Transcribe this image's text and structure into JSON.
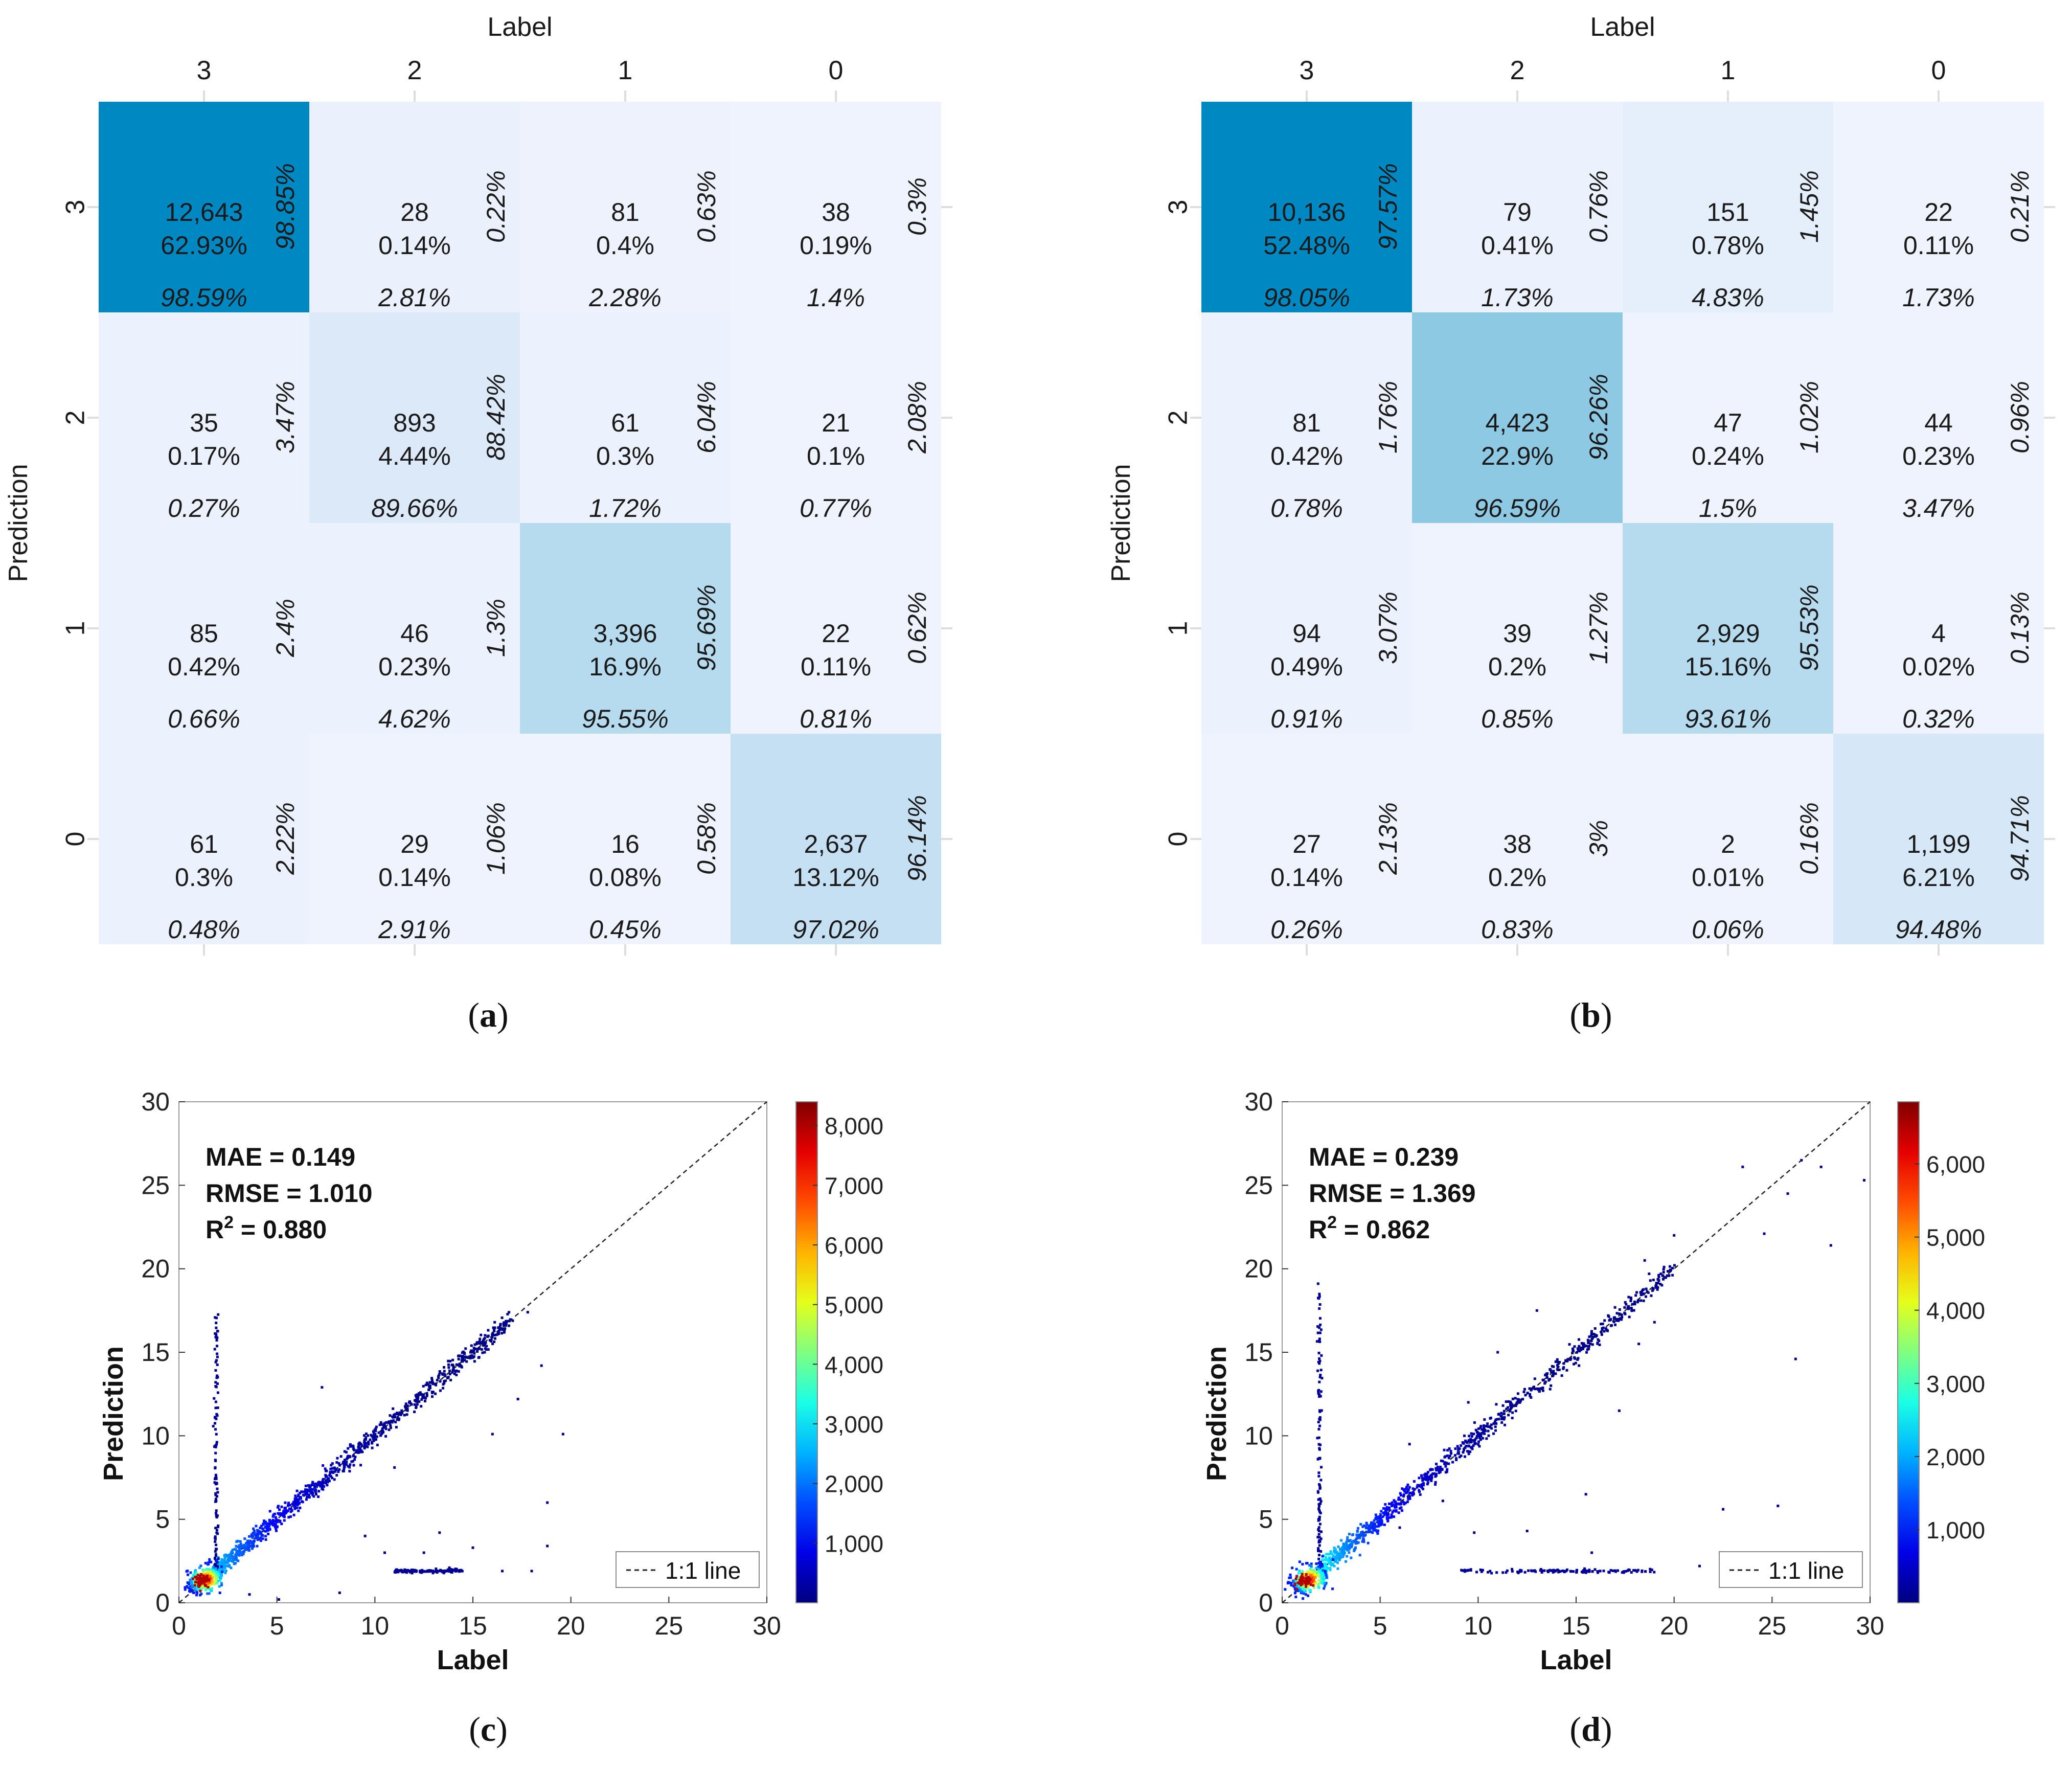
{
  "chart_data": [
    {
      "id": "a",
      "type": "heatmap",
      "caption_letter": "a",
      "xlabel": "Label",
      "ylabel": "Prediction",
      "x_categories": [
        "3",
        "2",
        "1",
        "0"
      ],
      "y_categories": [
        "3",
        "2",
        "1",
        "0"
      ],
      "cells": [
        [
          {
            "count": "12,643",
            "percent": "62.93%",
            "row_pct": "98.85%",
            "col_pct": "98.59%"
          },
          {
            "count": "28",
            "percent": "0.14%",
            "row_pct": "0.22%",
            "col_pct": "2.81%"
          },
          {
            "count": "81",
            "percent": "0.4%",
            "row_pct": "0.63%",
            "col_pct": "2.28%"
          },
          {
            "count": "38",
            "percent": "0.19%",
            "row_pct": "0.3%",
            "col_pct": "1.4%"
          }
        ],
        [
          {
            "count": "35",
            "percent": "0.17%",
            "row_pct": "3.47%",
            "col_pct": "0.27%"
          },
          {
            "count": "893",
            "percent": "4.44%",
            "row_pct": "88.42%",
            "col_pct": "89.66%"
          },
          {
            "count": "61",
            "percent": "0.3%",
            "row_pct": "6.04%",
            "col_pct": "1.72%"
          },
          {
            "count": "21",
            "percent": "0.1%",
            "row_pct": "2.08%",
            "col_pct": "0.77%"
          }
        ],
        [
          {
            "count": "85",
            "percent": "0.42%",
            "row_pct": "2.4%",
            "col_pct": "0.66%"
          },
          {
            "count": "46",
            "percent": "0.23%",
            "row_pct": "1.3%",
            "col_pct": "4.62%"
          },
          {
            "count": "3,396",
            "percent": "16.9%",
            "row_pct": "95.69%",
            "col_pct": "95.55%"
          },
          {
            "count": "22",
            "percent": "0.11%",
            "row_pct": "0.62%",
            "col_pct": "0.81%"
          }
        ],
        [
          {
            "count": "61",
            "percent": "0.3%",
            "row_pct": "2.22%",
            "col_pct": "0.48%"
          },
          {
            "count": "29",
            "percent": "0.14%",
            "row_pct": "1.06%",
            "col_pct": "2.91%"
          },
          {
            "count": "16",
            "percent": "0.08%",
            "row_pct": "0.58%",
            "col_pct": "0.45%"
          },
          {
            "count": "2,637",
            "percent": "13.12%",
            "row_pct": "96.14%",
            "col_pct": "97.02%"
          }
        ]
      ],
      "cell_colors": [
        [
          "#0088c2",
          "#eaf1fd",
          "#edf2fd",
          "#eef3fd"
        ],
        [
          "#ecf2fd",
          "#dce9f9",
          "#ecf2fd",
          "#eef3fd"
        ],
        [
          "#ebf1fd",
          "#ecf2fd",
          "#b6dbef",
          "#eef3fd"
        ],
        [
          "#ecf2fd",
          "#eef3fd",
          "#eef3fd",
          "#c5e0f3"
        ]
      ]
    },
    {
      "id": "b",
      "type": "heatmap",
      "caption_letter": "b",
      "xlabel": "Label",
      "ylabel": "Prediction",
      "x_categories": [
        "3",
        "2",
        "1",
        "0"
      ],
      "y_categories": [
        "3",
        "2",
        "1",
        "0"
      ],
      "cells": [
        [
          {
            "count": "10,136",
            "percent": "52.48%",
            "row_pct": "97.57%",
            "col_pct": "98.05%"
          },
          {
            "count": "79",
            "percent": "0.41%",
            "row_pct": "0.76%",
            "col_pct": "1.73%"
          },
          {
            "count": "151",
            "percent": "0.78%",
            "row_pct": "1.45%",
            "col_pct": "4.83%"
          },
          {
            "count": "22",
            "percent": "0.11%",
            "row_pct": "0.21%",
            "col_pct": "1.73%"
          }
        ],
        [
          {
            "count": "81",
            "percent": "0.42%",
            "row_pct": "1.76%",
            "col_pct": "0.78%"
          },
          {
            "count": "4,423",
            "percent": "22.9%",
            "row_pct": "96.26%",
            "col_pct": "96.59%"
          },
          {
            "count": "47",
            "percent": "0.24%",
            "row_pct": "1.02%",
            "col_pct": "1.5%"
          },
          {
            "count": "44",
            "percent": "0.23%",
            "row_pct": "0.96%",
            "col_pct": "3.47%"
          }
        ],
        [
          {
            "count": "94",
            "percent": "0.49%",
            "row_pct": "3.07%",
            "col_pct": "0.91%"
          },
          {
            "count": "39",
            "percent": "0.2%",
            "row_pct": "1.27%",
            "col_pct": "0.85%"
          },
          {
            "count": "2,929",
            "percent": "15.16%",
            "row_pct": "95.53%",
            "col_pct": "93.61%"
          },
          {
            "count": "4",
            "percent": "0.02%",
            "row_pct": "0.13%",
            "col_pct": "0.32%"
          }
        ],
        [
          {
            "count": "27",
            "percent": "0.14%",
            "row_pct": "2.13%",
            "col_pct": "0.26%"
          },
          {
            "count": "38",
            "percent": "0.2%",
            "row_pct": "3%",
            "col_pct": "0.83%"
          },
          {
            "count": "2",
            "percent": "0.01%",
            "row_pct": "0.16%",
            "col_pct": "0.06%"
          },
          {
            "count": "1,199",
            "percent": "6.21%",
            "row_pct": "94.71%",
            "col_pct": "94.48%"
          }
        ]
      ],
      "cell_colors": [
        [
          "#0088c2",
          "#ebf1fd",
          "#e5eefb",
          "#eef3fd"
        ],
        [
          "#ebf1fd",
          "#8dc9e3",
          "#eef3fd",
          "#eef3fd"
        ],
        [
          "#ebf1fd",
          "#eef3fd",
          "#b6dbef",
          "#eef3fd"
        ],
        [
          "#eef3fd",
          "#eef3fd",
          "#eef3fd",
          "#d6e7f8"
        ]
      ]
    },
    {
      "id": "c",
      "type": "scatter",
      "caption_letter": "c",
      "xlabel": "Label",
      "ylabel": "Prediction",
      "xlim": [
        0,
        30
      ],
      "ylim": [
        0,
        30
      ],
      "xticks": [
        0,
        5,
        10,
        15,
        20,
        25,
        30
      ],
      "yticks": [
        0,
        5,
        10,
        15,
        20,
        25,
        30
      ],
      "stats": {
        "mae": "MAE = 0.149",
        "rmse": "RMSE = 1.010",
        "r2_prefix": "R",
        "r2_sup": "2",
        "r2_suffix": " = 0.880"
      },
      "legend": "1:1 line",
      "colorbar": {
        "min": 0,
        "max": 8400,
        "ticks": [
          1000,
          2000,
          3000,
          4000,
          5000,
          6000,
          7000,
          8000
        ],
        "tick_labels": [
          "1,000",
          "2,000",
          "3,000",
          "4,000",
          "5,000",
          "6,000",
          "7,000",
          "8,000"
        ]
      },
      "clusters": {
        "core": [
          [
            0.8,
            0.9
          ],
          [
            1.0,
            1.1
          ],
          [
            1.2,
            1.3
          ],
          [
            1.4,
            1.5
          ],
          [
            1.6,
            1.7
          ],
          [
            1.8,
            1.9
          ],
          [
            1.1,
            0.9
          ],
          [
            1.5,
            1.3
          ],
          [
            0.9,
            1.2
          ],
          [
            1.7,
            1.5
          ]
        ],
        "diag_range": [
          2,
          17
        ],
        "vertical_spike": {
          "x": 1.9,
          "y_range": [
            2,
            17.3
          ]
        },
        "horizontal_band": {
          "y": 1.9,
          "x_range": [
            11,
            14.5
          ]
        },
        "outliers": [
          [
            7.3,
            12.9
          ],
          [
            11,
            8.1
          ],
          [
            13.3,
            4.2
          ],
          [
            16,
            10.1
          ],
          [
            17.3,
            12.2
          ],
          [
            19.6,
            10.1
          ],
          [
            18.8,
            6
          ],
          [
            18.8,
            3.4
          ],
          [
            15,
            3.3
          ],
          [
            12.5,
            3
          ],
          [
            17.8,
            17.4
          ],
          [
            18.5,
            14.2
          ],
          [
            15.6,
            15
          ],
          [
            16.3,
            16.2
          ],
          [
            7,
            6.5
          ],
          [
            9.5,
            4
          ],
          [
            10.5,
            3
          ],
          [
            8.2,
            0.6
          ],
          [
            3.6,
            0.5
          ],
          [
            5.1,
            0.2
          ],
          [
            13.8,
            2.1
          ],
          [
            16.5,
            1.9
          ],
          [
            18,
            1.9
          ]
        ]
      }
    },
    {
      "id": "d",
      "type": "scatter",
      "caption_letter": "d",
      "xlabel": "Label",
      "ylabel": "Prediction",
      "xlim": [
        0,
        30
      ],
      "ylim": [
        0,
        30
      ],
      "xticks": [
        0,
        5,
        10,
        15,
        20,
        25,
        30
      ],
      "yticks": [
        0,
        5,
        10,
        15,
        20,
        25,
        30
      ],
      "stats": {
        "mae": "MAE = 0.239",
        "rmse": "RMSE = 1.369",
        "r2_prefix": "R",
        "r2_sup": "2",
        "r2_suffix": " = 0.862"
      },
      "legend": "1:1 line",
      "colorbar": {
        "min": 0,
        "max": 6850,
        "ticks": [
          1000,
          2000,
          3000,
          4000,
          5000,
          6000
        ],
        "tick_labels": [
          "1,000",
          "2,000",
          "3,000",
          "4,000",
          "5,000",
          "6,000"
        ]
      },
      "clusters": {
        "core": [
          [
            0.8,
            0.9
          ],
          [
            1.0,
            1.1
          ],
          [
            1.2,
            1.3
          ],
          [
            1.4,
            1.5
          ],
          [
            1.6,
            1.7
          ],
          [
            1.8,
            1.9
          ],
          [
            1.1,
            0.9
          ],
          [
            1.5,
            1.3
          ],
          [
            0.9,
            1.2
          ],
          [
            1.7,
            1.5
          ]
        ],
        "diag_range": [
          2,
          20
        ],
        "vertical_spike": {
          "x": 1.9,
          "y_range": [
            2,
            19.2
          ]
        },
        "horizontal_band": {
          "y": 1.9,
          "x_range": [
            9,
            19
          ]
        },
        "outliers": [
          [
            23.5,
            26.1
          ],
          [
            26.5,
            26.5
          ],
          [
            27.5,
            26.1
          ],
          [
            25.8,
            24.5
          ],
          [
            28,
            21.4
          ],
          [
            26.2,
            14.6
          ],
          [
            22.5,
            5.6
          ],
          [
            25.3,
            5.8
          ],
          [
            29.7,
            25.3
          ],
          [
            20,
            22
          ],
          [
            18.5,
            20.5
          ],
          [
            13,
            17.5
          ],
          [
            11,
            15
          ],
          [
            9.5,
            12
          ],
          [
            6.5,
            9.5
          ],
          [
            8.2,
            6.1
          ],
          [
            9.8,
            4.2
          ],
          [
            15.5,
            6.5
          ],
          [
            15.8,
            3
          ],
          [
            12.5,
            4.3
          ],
          [
            21.3,
            2.2
          ],
          [
            17.2,
            11.5
          ],
          [
            18.2,
            15.5
          ],
          [
            19,
            16.8
          ],
          [
            24.6,
            22.1
          ],
          [
            6,
            4.5
          ]
        ]
      }
    }
  ]
}
